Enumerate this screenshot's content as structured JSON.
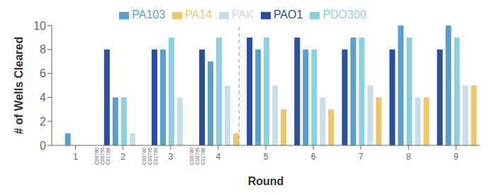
{
  "chart_data": {
    "type": "bar",
    "xlabel": "Round",
    "ylabel": "# of Wells Cleared",
    "categories": [
      "1",
      "2",
      "3",
      "4",
      "5",
      "6",
      "7",
      "8",
      "9"
    ],
    "series": [
      {
        "name": "PAO1",
        "color": "#2B4E9E",
        "values": [
          0,
          8,
          8,
          8,
          9,
          9,
          8,
          8,
          8
        ]
      },
      {
        "name": "PA103",
        "color": "#5B9EC9",
        "values": [
          1,
          4,
          8,
          7,
          8,
          8,
          9,
          10,
          10
        ]
      },
      {
        "name": "PDO300",
        "color": "#8DCFDF",
        "values": [
          0,
          4,
          9,
          9,
          9,
          8,
          9,
          9,
          9
        ]
      },
      {
        "name": "PAK",
        "color": "#C8DDE8",
        "values": [
          0,
          1,
          4,
          5,
          5,
          4,
          5,
          4,
          5
        ]
      },
      {
        "name": "PA14",
        "color": "#E8C86A",
        "values": [
          0,
          0,
          0,
          1,
          3,
          3,
          4,
          4,
          5
        ]
      }
    ],
    "ylim": [
      0,
      10
    ],
    "yticks": [
      0,
      2,
      4,
      6,
      8,
      10
    ],
    "grid": false,
    "legend": "top",
    "reference_lines": [
      {
        "x": 3.5,
        "line_style": "dashed",
        "color": "#999999"
      }
    ],
    "annotations": [
      {
        "x": "1",
        "text": [
          "C00780",
          "C00795",
          "C01788"
        ],
        "color": "#666666"
      },
      {
        "x": "2",
        "text": [
          "C00780",
          "C00795",
          "C01788"
        ],
        "color": "#666666"
      },
      {
        "x": "3",
        "text": [
          "C00780",
          "C00795",
          "C01788"
        ],
        "color": "#666666"
      }
    ]
  }
}
